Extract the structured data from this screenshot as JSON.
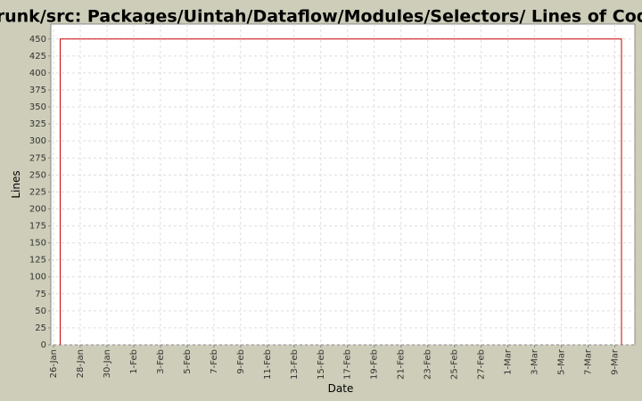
{
  "chart_data": {
    "type": "line",
    "title": "/trunk/src: Packages/Uintah/Dataflow/Modules/Selectors/ Lines of Code",
    "x_label": "Date",
    "y_label": "Lines",
    "series": [
      {
        "color": "#cc0000",
        "x": [
          0.5,
          0.5,
          42.5,
          42.5
        ],
        "values": [
          0,
          450,
          450,
          0
        ]
      }
    ],
    "xlim": [
      -0.2,
      43.5
    ],
    "xticks": [
      {
        "value": 0,
        "label": "26-Jan"
      },
      {
        "value": 2,
        "label": "28-Jan"
      },
      {
        "value": 4,
        "label": "30-Jan"
      },
      {
        "value": 6,
        "label": "1-Feb"
      },
      {
        "value": 8,
        "label": "3-Feb"
      },
      {
        "value": 10,
        "label": "5-Feb"
      },
      {
        "value": 12,
        "label": "7-Feb"
      },
      {
        "value": 14,
        "label": "9-Feb"
      },
      {
        "value": 16,
        "label": "11-Feb"
      },
      {
        "value": 18,
        "label": "13-Feb"
      },
      {
        "value": 20,
        "label": "15-Feb"
      },
      {
        "value": 22,
        "label": "17-Feb"
      },
      {
        "value": 24,
        "label": "19-Feb"
      },
      {
        "value": 26,
        "label": "21-Feb"
      },
      {
        "value": 28,
        "label": "23-Feb"
      },
      {
        "value": 30,
        "label": "25-Feb"
      },
      {
        "value": 32,
        "label": "27-Feb"
      },
      {
        "value": 34,
        "label": "1-Mar"
      },
      {
        "value": 36,
        "label": "3-Mar"
      },
      {
        "value": 38,
        "label": "5-Mar"
      },
      {
        "value": 40,
        "label": "7-Mar"
      },
      {
        "value": 42,
        "label": "9-Mar"
      }
    ],
    "ylim": [
      0,
      472
    ],
    "yticks": [
      0,
      25,
      50,
      75,
      100,
      125,
      150,
      175,
      200,
      225,
      250,
      275,
      300,
      325,
      350,
      375,
      400,
      425,
      450
    ],
    "grid": true
  }
}
